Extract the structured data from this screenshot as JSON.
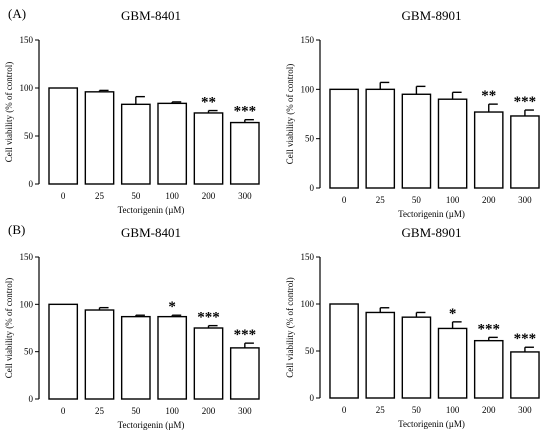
{
  "panels": {
    "a": "(A)",
    "b": "(B)"
  },
  "chart_data": [
    {
      "type": "bar",
      "title": "GBM-8401",
      "xlabel": "Tectorigenin (µM)",
      "ylabel": "Cell viability  (% of control)",
      "categories": [
        "0",
        "25",
        "50",
        "100",
        "200",
        "300"
      ],
      "values": [
        100,
        96,
        83,
        84,
        74,
        64
      ],
      "errors": [
        0,
        1.5,
        8,
        1.5,
        2.5,
        3
      ],
      "significance": [
        "",
        "",
        "",
        "",
        "**",
        "***"
      ],
      "ylim": [
        0,
        150
      ],
      "yticks": [
        "0",
        "50",
        "100",
        "150"
      ]
    },
    {
      "type": "bar",
      "title": "GBM-8901",
      "xlabel": "Tectorigenin (µM)",
      "ylabel": "Cell viability  (% of control)",
      "categories": [
        "0",
        "25",
        "50",
        "100",
        "200",
        "300"
      ],
      "values": [
        100,
        100,
        95,
        90,
        77,
        73
      ],
      "errors": [
        0,
        7,
        8,
        7,
        8,
        6
      ],
      "significance": [
        "",
        "",
        "",
        "",
        "**",
        "***"
      ],
      "ylim": [
        0,
        150
      ],
      "yticks": [
        "0",
        "50",
        "100",
        "150"
      ]
    },
    {
      "type": "bar",
      "title": "GBM-8401",
      "xlabel": "Tectorigenin (µM)",
      "ylabel": "Cell viability  (% of control)",
      "categories": [
        "0",
        "25",
        "50",
        "100",
        "200",
        "300"
      ],
      "values": [
        100,
        94,
        87,
        87,
        75,
        54
      ],
      "errors": [
        0,
        2.5,
        1.5,
        1.5,
        2.5,
        5
      ],
      "significance": [
        "",
        "",
        "",
        "*",
        "***",
        "***"
      ],
      "ylim": [
        0,
        150
      ],
      "yticks": [
        "0",
        "50",
        "100",
        "150"
      ]
    },
    {
      "type": "bar",
      "title": "GBM-8901",
      "xlabel": "Tectorigenin (µM)",
      "ylabel": "Cell viability  (% of control)",
      "categories": [
        "0",
        "25",
        "50",
        "100",
        "200",
        "300"
      ],
      "values": [
        100,
        91,
        86,
        74,
        61,
        49
      ],
      "errors": [
        0,
        5,
        5,
        7,
        3.5,
        5
      ],
      "significance": [
        "",
        "",
        "",
        "*",
        "***",
        "***"
      ],
      "ylim": [
        0,
        150
      ],
      "yticks": [
        "0",
        "50",
        "100",
        "150"
      ]
    }
  ]
}
